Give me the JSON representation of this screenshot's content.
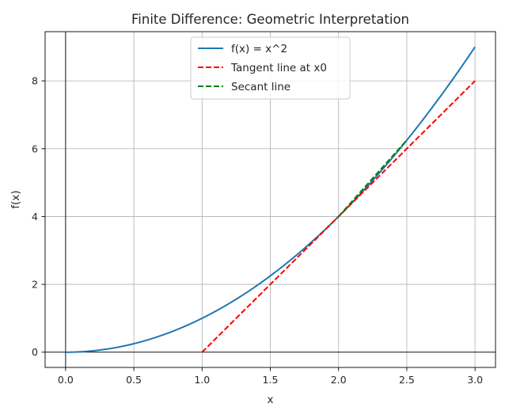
{
  "chart_data": {
    "type": "line",
    "title": "Finite Difference: Geometric Interpretation",
    "xlabel": "x",
    "ylabel": "f(x)",
    "xlim": [
      -0.15,
      3.15
    ],
    "ylim": [
      -0.45,
      9.45
    ],
    "xticks": [
      0.0,
      0.5,
      1.0,
      1.5,
      2.0,
      2.5,
      3.0
    ],
    "xtick_labels": [
      "0.0",
      "0.5",
      "1.0",
      "1.5",
      "2.0",
      "2.5",
      "3.0"
    ],
    "yticks": [
      0,
      2,
      4,
      6,
      8
    ],
    "ytick_labels": [
      "0",
      "2",
      "4",
      "6",
      "8"
    ],
    "grid": true,
    "reference_lines": {
      "x": 0,
      "y": 0,
      "color": "#000000"
    },
    "legend_position": "top-center",
    "series": [
      {
        "name": "f(x) = x^2",
        "style": "solid",
        "color": "#1f77b4",
        "function": "x^2",
        "x_range": [
          0,
          3
        ]
      },
      {
        "name": "Tangent line at x0",
        "style": "dashed",
        "color": "#ff0000",
        "x": [
          1.0,
          3.0
        ],
        "y": [
          0,
          8
        ]
      },
      {
        "name": "Secant line",
        "style": "dashed",
        "color": "#008000",
        "x": [
          2.0,
          2.5
        ],
        "y": [
          4.0,
          6.25
        ]
      }
    ]
  }
}
